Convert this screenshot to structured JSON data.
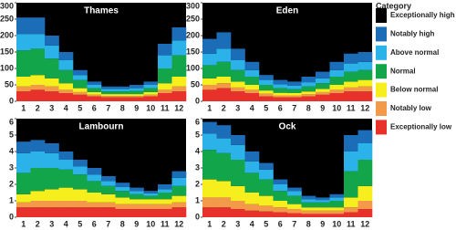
{
  "chart_data": [
    {
      "type": "stepstack",
      "title": "Thames",
      "legend_title": "Category",
      "x": [
        1,
        2,
        3,
        4,
        5,
        6,
        7,
        8,
        9,
        10,
        11,
        12
      ],
      "xlim": [
        0.5,
        12.5
      ],
      "ylim": [
        0,
        300
      ],
      "yticks": [
        0,
        50,
        100,
        150,
        200,
        250,
        300
      ],
      "series": [
        {
          "name": "Exceptionally low",
          "color": "#e8312a",
          "values": [
            30,
            35,
            30,
            25,
            20,
            15,
            12,
            12,
            12,
            15,
            25,
            30
          ]
        },
        {
          "name": "Notably low",
          "color": "#f39a4a",
          "values": [
            15,
            15,
            15,
            10,
            8,
            5,
            4,
            4,
            4,
            5,
            10,
            15
          ]
        },
        {
          "name": "Below normal",
          "color": "#f7ef1d",
          "values": [
            30,
            30,
            25,
            20,
            12,
            8,
            6,
            6,
            6,
            8,
            20,
            30
          ]
        },
        {
          "name": "Normal",
          "color": "#13a54a",
          "values": [
            80,
            80,
            60,
            40,
            25,
            12,
            8,
            8,
            10,
            12,
            45,
            65
          ]
        },
        {
          "name": "Above normal",
          "color": "#2bb2e8",
          "values": [
            50,
            45,
            40,
            30,
            15,
            10,
            8,
            8,
            8,
            10,
            40,
            45
          ]
        },
        {
          "name": "Notably high",
          "color": "#1c6db8",
          "values": [
            50,
            50,
            30,
            25,
            15,
            10,
            7,
            7,
            10,
            10,
            35,
            40
          ]
        },
        {
          "name": "Exceptionally high",
          "color": "#000000"
        }
      ]
    },
    {
      "type": "stepstack",
      "title": "Eden",
      "x": [
        1,
        2,
        3,
        4,
        5,
        6,
        7,
        8,
        9,
        10,
        11,
        12
      ],
      "xlim": [
        0.5,
        12.5
      ],
      "ylim": [
        0,
        300
      ],
      "yticks": [
        0,
        50,
        100,
        150,
        200,
        250,
        300
      ],
      "series": [
        {
          "color": "#e8312a",
          "values": [
            35,
            40,
            30,
            25,
            15,
            12,
            12,
            15,
            20,
            25,
            30,
            30
          ]
        },
        {
          "color": "#f39a4a",
          "values": [
            15,
            15,
            12,
            10,
            8,
            6,
            6,
            7,
            8,
            10,
            12,
            15
          ]
        },
        {
          "color": "#f7ef1d",
          "values": [
            20,
            20,
            18,
            15,
            10,
            8,
            7,
            8,
            10,
            15,
            18,
            20
          ]
        },
        {
          "color": "#13a54a",
          "values": [
            40,
            45,
            35,
            25,
            17,
            14,
            12,
            15,
            17,
            25,
            30,
            30
          ]
        },
        {
          "color": "#2bb2e8",
          "values": [
            35,
            40,
            30,
            20,
            15,
            12,
            11,
            13,
            15,
            20,
            25,
            25
          ]
        },
        {
          "color": "#1c6db8",
          "values": [
            45,
            50,
            35,
            25,
            15,
            13,
            12,
            17,
            20,
            25,
            30,
            30
          ]
        },
        {
          "color": "#000000"
        }
      ]
    },
    {
      "type": "stepstack",
      "title": "Lambourn",
      "x": [
        1,
        2,
        3,
        4,
        5,
        6,
        7,
        8,
        9,
        10,
        11,
        12
      ],
      "xlim": [
        0.5,
        12.5
      ],
      "ylim": [
        0,
        6
      ],
      "yticks": [
        0,
        1,
        2,
        3,
        4,
        5,
        6
      ],
      "series": [
        {
          "color": "#e8312a",
          "values": [
            0.6,
            0.6,
            0.6,
            0.6,
            0.6,
            0.6,
            0.6,
            0.5,
            0.5,
            0.5,
            0.5,
            0.6
          ]
        },
        {
          "color": "#f39a4a",
          "values": [
            0.3,
            0.4,
            0.4,
            0.4,
            0.4,
            0.3,
            0.3,
            0.3,
            0.3,
            0.3,
            0.3,
            0.3
          ]
        },
        {
          "color": "#f7ef1d",
          "values": [
            0.5,
            0.6,
            0.7,
            0.8,
            0.7,
            0.6,
            0.5,
            0.4,
            0.3,
            0.3,
            0.3,
            0.4
          ]
        },
        {
          "color": "#13a54a",
          "values": [
            1.3,
            1.4,
            1.3,
            1.1,
            0.9,
            0.7,
            0.5,
            0.4,
            0.3,
            0.2,
            0.4,
            0.6
          ]
        },
        {
          "color": "#2bb2e8",
          "values": [
            1.2,
            1.0,
            0.9,
            0.6,
            0.5,
            0.4,
            0.3,
            0.25,
            0.2,
            0.15,
            0.2,
            0.5
          ]
        },
        {
          "color": "#1c6db8",
          "values": [
            0.7,
            0.7,
            0.6,
            0.5,
            0.4,
            0.4,
            0.3,
            0.25,
            0.2,
            0.15,
            0.3,
            0.4
          ]
        },
        {
          "color": "#000000"
        }
      ]
    },
    {
      "type": "stepstack",
      "title": "Ock",
      "x": [
        1,
        2,
        3,
        4,
        5,
        6,
        7,
        8,
        9,
        10,
        11,
        12
      ],
      "xlim": [
        0.5,
        12.5
      ],
      "ylim": [
        0,
        6
      ],
      "yticks": [
        0,
        1,
        2,
        3,
        4,
        5,
        6
      ],
      "series": [
        {
          "color": "#e8312a",
          "values": [
            0.6,
            0.6,
            0.5,
            0.4,
            0.35,
            0.3,
            0.25,
            0.2,
            0.2,
            0.2,
            0.3,
            0.5
          ]
        },
        {
          "color": "#f39a4a",
          "values": [
            0.6,
            0.6,
            0.5,
            0.4,
            0.35,
            0.3,
            0.25,
            0.2,
            0.2,
            0.2,
            0.3,
            0.5
          ]
        },
        {
          "color": "#f7ef1d",
          "values": [
            1.1,
            1.0,
            0.9,
            0.7,
            0.6,
            0.4,
            0.3,
            0.2,
            0.2,
            0.2,
            0.6,
            0.9
          ]
        },
        {
          "color": "#13a54a",
          "values": [
            1.8,
            1.7,
            1.6,
            1.2,
            1.0,
            0.6,
            0.5,
            0.3,
            0.3,
            0.4,
            1.6,
            1.6
          ]
        },
        {
          "color": "#2bb2e8",
          "values": [
            1.0,
            0.9,
            0.9,
            0.7,
            0.6,
            0.4,
            0.3,
            0.2,
            0.15,
            0.2,
            1.2,
            1.0
          ]
        },
        {
          "color": "#1c6db8",
          "values": [
            0.7,
            0.8,
            0.6,
            0.6,
            0.4,
            0.3,
            0.2,
            0.2,
            0.15,
            0.2,
            1.0,
            0.8
          ]
        },
        {
          "color": "#000000"
        }
      ]
    }
  ]
}
